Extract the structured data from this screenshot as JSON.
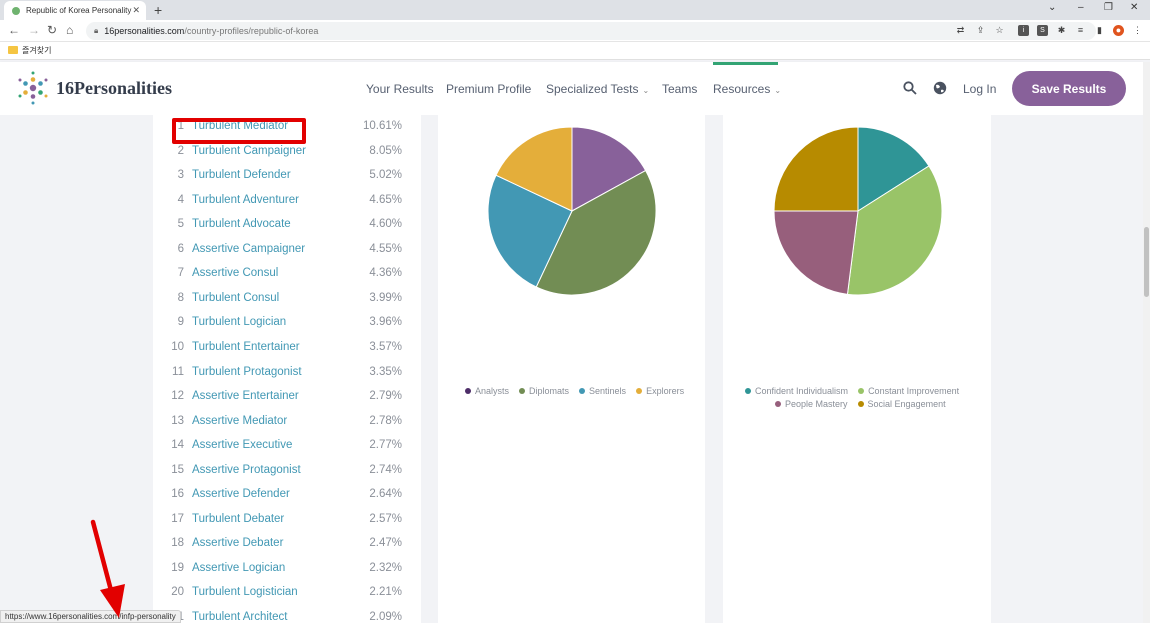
{
  "browser": {
    "tab_title": "Republic of Korea Personality P",
    "tab_close": "✕",
    "new_tab": "+",
    "url_domain": "16personalities.com",
    "url_path": "/country-profiles/republic-of-korea",
    "bookmark": "즐겨찾기",
    "status_url": "https://www.16personalities.com/infp-personality"
  },
  "header": {
    "logo_number": "16",
    "logo_word": "Personalities",
    "nav": [
      {
        "label": "Your Results"
      },
      {
        "label": "Premium Profile"
      },
      {
        "label": "Specialized Tests"
      },
      {
        "label": "Teams"
      },
      {
        "label": "Resources"
      }
    ],
    "login": "Log In",
    "save": "Save Results",
    "accent_color": "#88619a"
  },
  "rankings": [
    {
      "rank": "1",
      "name": "Turbulent Mediator",
      "pct": "10.61%"
    },
    {
      "rank": "2",
      "name": "Turbulent Campaigner",
      "pct": "8.05%"
    },
    {
      "rank": "3",
      "name": "Turbulent Defender",
      "pct": "5.02%"
    },
    {
      "rank": "4",
      "name": "Turbulent Adventurer",
      "pct": "4.65%"
    },
    {
      "rank": "5",
      "name": "Turbulent Advocate",
      "pct": "4.60%"
    },
    {
      "rank": "6",
      "name": "Assertive Campaigner",
      "pct": "4.55%"
    },
    {
      "rank": "7",
      "name": "Assertive Consul",
      "pct": "4.36%"
    },
    {
      "rank": "8",
      "name": "Turbulent Consul",
      "pct": "3.99%"
    },
    {
      "rank": "9",
      "name": "Turbulent Logician",
      "pct": "3.96%"
    },
    {
      "rank": "10",
      "name": "Turbulent Entertainer",
      "pct": "3.57%"
    },
    {
      "rank": "11",
      "name": "Turbulent Protagonist",
      "pct": "3.35%"
    },
    {
      "rank": "12",
      "name": "Assertive Entertainer",
      "pct": "2.79%"
    },
    {
      "rank": "13",
      "name": "Assertive Mediator",
      "pct": "2.78%"
    },
    {
      "rank": "14",
      "name": "Assertive Executive",
      "pct": "2.77%"
    },
    {
      "rank": "15",
      "name": "Assertive Protagonist",
      "pct": "2.74%"
    },
    {
      "rank": "16",
      "name": "Assertive Defender",
      "pct": "2.64%"
    },
    {
      "rank": "17",
      "name": "Turbulent Debater",
      "pct": "2.57%"
    },
    {
      "rank": "18",
      "name": "Assertive Debater",
      "pct": "2.47%"
    },
    {
      "rank": "19",
      "name": "Assertive Logician",
      "pct": "2.32%"
    },
    {
      "rank": "20",
      "name": "Turbulent Logistician",
      "pct": "2.21%"
    },
    {
      "rank": "21",
      "name": "Turbulent Architect",
      "pct": "2.09%"
    }
  ],
  "chart_data": [
    {
      "type": "pie",
      "labels": [
        "Analysts",
        "Diplomats",
        "Sentinels",
        "Explorers"
      ],
      "values": [
        17,
        40,
        25,
        18
      ],
      "colors": [
        "#88619a",
        "#728d54",
        "#4298b4",
        "#e4ae3a"
      ]
    },
    {
      "type": "pie",
      "labels": [
        "Confident Individualism",
        "Constant Improvement",
        "People Mastery",
        "Social Engagement"
      ],
      "values": [
        16,
        36,
        23,
        25
      ],
      "colors": [
        "#2f9596",
        "#99c468",
        "#975f7c",
        "#b78b00"
      ]
    }
  ]
}
